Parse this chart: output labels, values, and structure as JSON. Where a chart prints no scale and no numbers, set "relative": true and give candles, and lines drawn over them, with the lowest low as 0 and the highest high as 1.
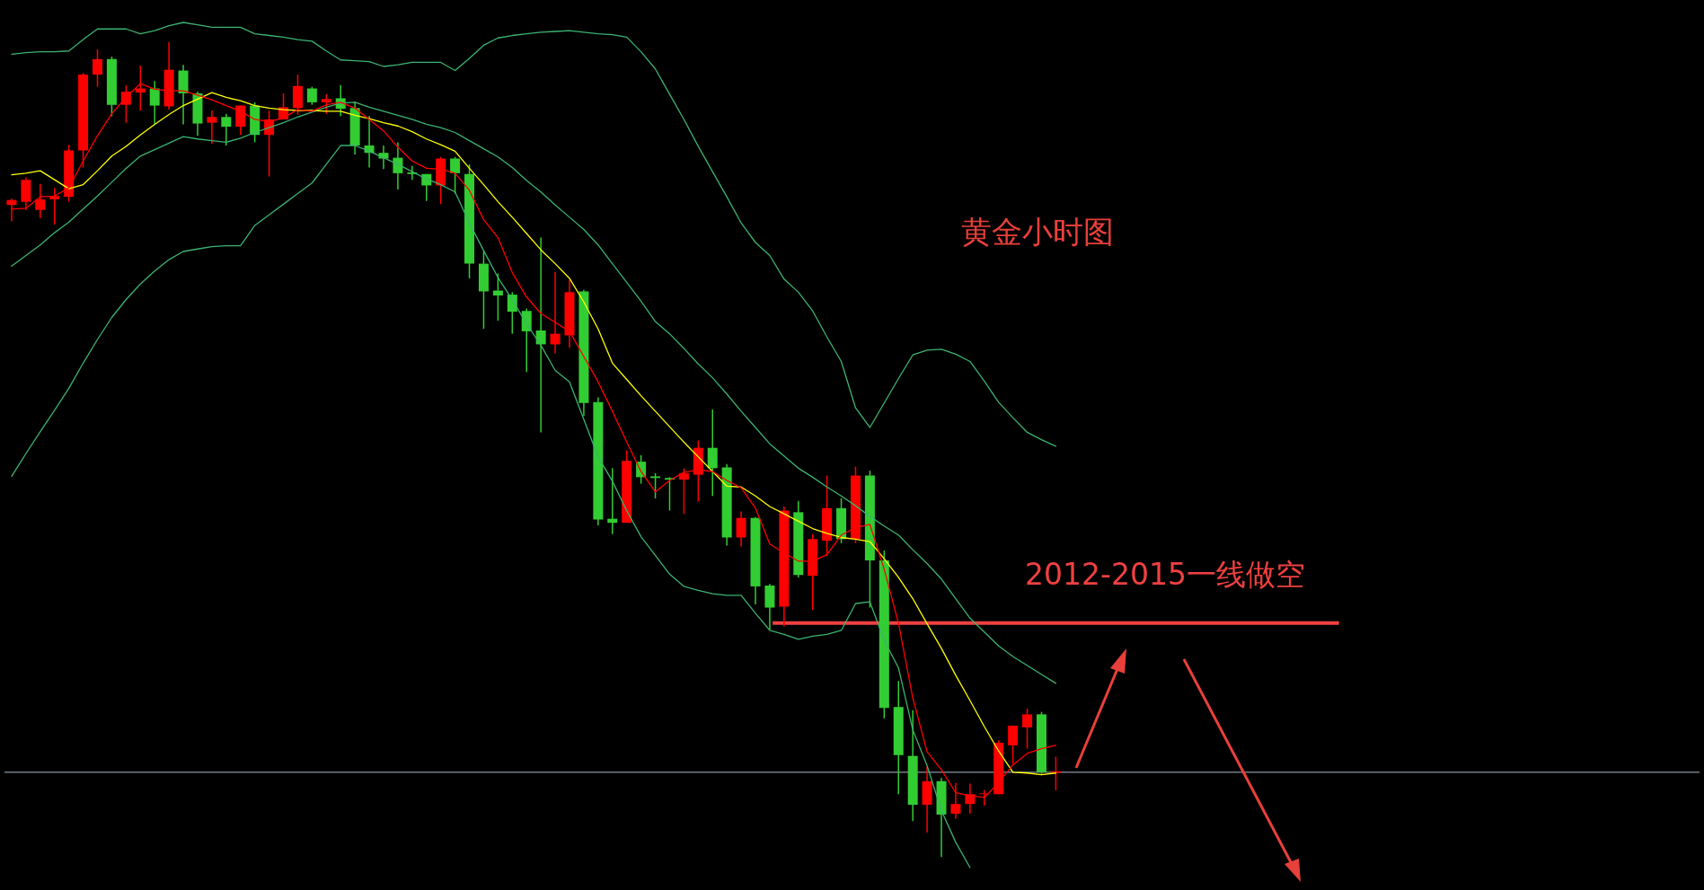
{
  "chart_data": {
    "type": "candlestick",
    "title": "黄金小时图",
    "relative": true,
    "categories": [
      null,
      null,
      null,
      null,
      null,
      null,
      null,
      null,
      null,
      null,
      null,
      null,
      null,
      null,
      null,
      null,
      null,
      null,
      null,
      null,
      null,
      null,
      null,
      null,
      null,
      null,
      null,
      null,
      null,
      null,
      null,
      null,
      null,
      null,
      null,
      null,
      null,
      null,
      null,
      null,
      null,
      null,
      null,
      null,
      null,
      null,
      null,
      null,
      null,
      null,
      null,
      null,
      null,
      null,
      null,
      null,
      null,
      null,
      null,
      null,
      null,
      null,
      null,
      null,
      null,
      null,
      null,
      null,
      null,
      null,
      null,
      null,
      null,
      null
    ],
    "ohlc": [
      [
        0.8,
        0.808,
        0.78,
        0.806
      ],
      [
        0.804,
        0.834,
        0.794,
        0.831
      ],
      [
        0.794,
        0.826,
        0.784,
        0.807
      ],
      [
        0.807,
        0.821,
        0.776,
        0.811
      ],
      [
        0.81,
        0.874,
        0.804,
        0.867
      ],
      [
        0.867,
        0.962,
        0.846,
        0.96
      ],
      [
        0.96,
        0.991,
        0.945,
        0.979
      ],
      [
        0.979,
        0.982,
        0.909,
        0.923
      ],
      [
        0.923,
        0.947,
        0.901,
        0.939
      ],
      [
        0.938,
        0.971,
        0.916,
        0.943
      ],
      [
        0.943,
        0.952,
        0.899,
        0.922
      ],
      [
        0.921,
        1.0,
        0.917,
        0.966
      ],
      [
        0.965,
        0.972,
        0.899,
        0.937
      ],
      [
        0.937,
        0.939,
        0.885,
        0.9
      ],
      [
        0.901,
        0.916,
        0.875,
        0.908
      ],
      [
        0.908,
        0.912,
        0.873,
        0.896
      ],
      [
        0.896,
        0.922,
        0.886,
        0.922
      ],
      [
        0.922,
        0.926,
        0.877,
        0.886
      ],
      [
        0.886,
        0.916,
        0.835,
        0.905
      ],
      [
        0.905,
        0.937,
        0.905,
        0.92
      ],
      [
        0.919,
        0.96,
        0.911,
        0.946
      ],
      [
        0.943,
        0.945,
        0.923,
        0.926
      ],
      [
        0.926,
        0.936,
        0.912,
        0.93
      ],
      [
        0.931,
        0.947,
        0.909,
        0.918
      ],
      [
        0.919,
        0.927,
        0.862,
        0.873
      ],
      [
        0.873,
        0.909,
        0.846,
        0.864
      ],
      [
        0.864,
        0.873,
        0.844,
        0.857
      ],
      [
        0.858,
        0.877,
        0.819,
        0.839
      ],
      [
        0.84,
        0.848,
        0.831,
        0.838
      ],
      [
        0.838,
        0.838,
        0.805,
        0.824
      ],
      [
        0.824,
        0.859,
        0.801,
        0.857
      ],
      [
        0.857,
        0.859,
        0.814,
        0.839
      ],
      [
        0.838,
        0.85,
        0.71,
        0.728
      ],
      [
        0.728,
        0.743,
        0.648,
        0.694
      ],
      [
        0.695,
        0.716,
        0.658,
        0.689
      ],
      [
        0.69,
        0.693,
        0.642,
        0.669
      ],
      [
        0.67,
        0.673,
        0.595,
        0.645
      ],
      [
        0.646,
        0.76,
        0.521,
        0.629
      ],
      [
        0.629,
        0.718,
        0.618,
        0.642
      ],
      [
        0.64,
        0.708,
        0.625,
        0.693
      ],
      [
        0.694,
        0.696,
        0.541,
        0.557
      ],
      [
        0.558,
        0.564,
        0.407,
        0.414
      ],
      [
        0.415,
        0.477,
        0.396,
        0.41
      ],
      [
        0.41,
        0.499,
        0.41,
        0.486
      ],
      [
        0.485,
        0.493,
        0.458,
        0.466
      ],
      [
        0.467,
        0.471,
        0.44,
        0.465
      ],
      [
        0.465,
        0.466,
        0.425,
        0.463
      ],
      [
        0.463,
        0.477,
        0.421,
        0.471
      ],
      [
        0.469,
        0.511,
        0.436,
        0.502
      ],
      [
        0.502,
        0.549,
        0.443,
        0.477
      ],
      [
        0.478,
        0.482,
        0.382,
        0.392
      ],
      [
        0.392,
        0.424,
        0.381,
        0.416
      ],
      [
        0.416,
        0.417,
        0.31,
        0.332
      ],
      [
        0.333,
        0.335,
        0.279,
        0.306
      ],
      [
        0.307,
        0.43,
        0.283,
        0.425
      ],
      [
        0.423,
        0.437,
        0.343,
        0.346
      ],
      [
        0.345,
        0.396,
        0.303,
        0.39
      ],
      [
        0.388,
        0.468,
        0.37,
        0.428
      ],
      [
        0.428,
        0.44,
        0.385,
        0.39
      ],
      [
        0.39,
        0.479,
        0.385,
        0.468
      ],
      [
        0.468,
        0.474,
        0.306,
        0.364
      ],
      [
        0.364,
        0.376,
        0.17,
        0.183
      ],
      [
        0.184,
        0.216,
        0.077,
        0.125
      ],
      [
        0.124,
        0.18,
        0.044,
        0.064
      ],
      [
        0.064,
        0.111,
        0.03,
        0.093
      ],
      [
        0.093,
        0.097,
        0,
        0.052
      ],
      [
        0.053,
        0.091,
        0.047,
        0.065
      ],
      [
        0.065,
        0.09,
        0.053,
        0.077
      ],
      [
        0.077,
        0.082,
        0.063,
        0.078
      ],
      [
        0.077,
        0.143,
        0.077,
        0.14
      ],
      [
        0.137,
        0.161,
        0.114,
        0.161
      ],
      [
        0.159,
        0.182,
        0.133,
        0.175
      ],
      [
        0.175,
        0.178,
        0.102,
        0.104
      ],
      [
        0.103,
        0.123,
        0.082,
        0.105
      ]
    ],
    "series": [
      {
        "type": "line",
        "color": "#3cb371",
        "values": [
          0.985,
          0.987,
          0.988,
          0.988,
          0.989,
          1.003,
          1.016,
          1.016,
          1.016,
          1.01,
          1.014,
          1.02,
          1.024,
          1.021,
          1.018,
          1.018,
          1.018,
          1.01,
          1.008,
          1.006,
          1.003,
          1.001,
          0.989,
          0.978,
          0.977,
          0.976,
          0.97,
          0.972,
          0.975,
          0.975,
          0.975,
          0.965,
          0.98,
          0.996,
          1.005,
          1.008,
          1.01,
          1.012,
          1.013,
          1.014,
          1.012,
          1.01,
          1.009,
          1.006,
          0.988,
          0.967,
          0.936,
          0.905,
          0.872,
          0.841,
          0.81,
          0.778,
          0.754,
          0.738,
          0.709,
          0.693,
          0.67,
          0.638,
          0.608,
          0.551,
          0.527,
          0.557,
          0.587,
          0.616,
          0.622,
          0.623,
          0.617,
          0.608,
          0.584,
          0.558,
          0.539,
          0.521,
          0.512,
          0.504
        ]
      },
      {
        "type": "line",
        "color": "#3cb371",
        "values": [
          0.725,
          0.738,
          0.751,
          0.766,
          0.779,
          0.795,
          0.811,
          0.828,
          0.845,
          0.86,
          0.868,
          0.876,
          0.884,
          0.881,
          0.879,
          0.877,
          0.882,
          0.889,
          0.895,
          0.901,
          0.908,
          0.914,
          0.92,
          0.925,
          0.926,
          0.92,
          0.915,
          0.91,
          0.905,
          0.899,
          0.895,
          0.889,
          0.879,
          0.869,
          0.859,
          0.846,
          0.83,
          0.816,
          0.8,
          0.785,
          0.77,
          0.751,
          0.728,
          0.705,
          0.682,
          0.657,
          0.642,
          0.624,
          0.605,
          0.588,
          0.568,
          0.547,
          0.527,
          0.507,
          0.492,
          0.477,
          0.466,
          0.454,
          0.443,
          0.431,
          0.418,
          0.406,
          0.395,
          0.377,
          0.36,
          0.341,
          0.317,
          0.293,
          0.276,
          0.259,
          0.246,
          0.235,
          0.224,
          0.213
        ]
      },
      {
        "type": "line",
        "color": "#3cb371",
        "values": [
          0.467,
          0.495,
          0.522,
          0.548,
          0.575,
          0.606,
          0.635,
          0.662,
          0.684,
          0.703,
          0.719,
          0.733,
          0.743,
          0.746,
          0.749,
          0.75,
          0.75,
          0.775,
          0.788,
          0.801,
          0.814,
          0.827,
          0.85,
          0.873,
          0.873,
          0.866,
          0.858,
          0.85,
          0.841,
          0.832,
          0.825,
          0.816,
          0.778,
          0.744,
          0.711,
          0.684,
          0.654,
          0.628,
          0.597,
          0.583,
          0.537,
          0.491,
          0.461,
          0.425,
          0.393,
          0.37,
          0.347,
          0.332,
          0.327,
          0.323,
          0.321,
          0.321,
          0.299,
          0.278,
          0.273,
          0.267,
          0.271,
          0.273,
          0.278,
          0.311,
          0.313,
          0.266,
          0.232,
          0.156,
          0.112,
          0.057,
          0.018,
          -0.013,
          null,
          null,
          null,
          null,
          null,
          null
        ]
      },
      {
        "type": "line",
        "color": "#ffff00",
        "values": [
          0.837,
          0.839,
          0.842,
          0.831,
          0.82,
          0.825,
          0.842,
          0.86,
          0.872,
          0.886,
          0.899,
          0.911,
          0.922,
          0.93,
          0.938,
          0.932,
          0.928,
          0.922,
          0.919,
          0.917,
          0.916,
          0.916,
          0.915,
          0.915,
          0.91,
          0.906,
          0.901,
          0.897,
          0.89,
          0.881,
          0.874,
          0.866,
          0.845,
          0.825,
          0.804,
          0.785,
          0.765,
          0.745,
          0.728,
          0.71,
          0.681,
          0.648,
          0.606,
          0.586,
          0.566,
          0.547,
          0.528,
          0.509,
          0.491,
          0.473,
          0.455,
          0.454,
          0.443,
          0.43,
          0.421,
          0.412,
          0.403,
          0.397,
          0.392,
          0.39,
          0.387,
          0.366,
          0.343,
          0.317,
          0.286,
          0.256,
          0.223,
          0.192,
          0.16,
          0.13,
          0.104,
          0.103,
          0.101,
          0.103
        ]
      },
      {
        "type": "line",
        "color": "#ff0000",
        "values": [
          0.795,
          0.796,
          0.81,
          0.811,
          0.821,
          0.854,
          0.885,
          0.912,
          0.932,
          0.949,
          0.942,
          0.94,
          0.94,
          0.935,
          0.929,
          0.922,
          0.915,
          0.905,
          0.902,
          0.907,
          0.917,
          0.915,
          0.923,
          0.926,
          0.919,
          0.905,
          0.891,
          0.871,
          0.854,
          0.845,
          0.844,
          0.839,
          0.818,
          0.782,
          0.76,
          0.717,
          0.687,
          0.667,
          0.656,
          0.645,
          0.614,
          0.583,
          0.547,
          0.509,
          0.473,
          0.448,
          0.462,
          0.472,
          0.475,
          0.473,
          0.462,
          0.453,
          0.428,
          0.384,
          0.373,
          0.363,
          0.363,
          0.371,
          0.395,
          0.404,
          0.408,
          0.353,
          0.287,
          0.195,
          0.129,
          0.107,
          0.079,
          0.075,
          0.073,
          0.091,
          0.113,
          0.127,
          0.133,
          0.137
        ]
      }
    ],
    "ref_lines": [
      {
        "axis": "y",
        "value": 0.287,
        "label": "2012-2015一线做空",
        "color": "#f04040"
      },
      {
        "axis": "y",
        "value": 0.104,
        "color": "#8a96a3"
      }
    ]
  }
}
